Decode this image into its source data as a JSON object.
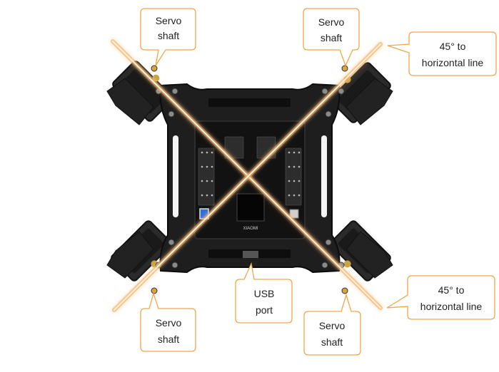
{
  "callouts": {
    "servo_top_left": {
      "line1": "Servo",
      "line2": "shaft"
    },
    "servo_top_right": {
      "line1": "Servo",
      "line2": "shaft"
    },
    "servo_bottom_left": {
      "line1": "Servo",
      "line2": "shaft"
    },
    "servo_bottom_right": {
      "line1": "Servo",
      "line2": "shaft"
    },
    "angle_top": {
      "line1": "45° to",
      "line2": "horizontal line"
    },
    "angle_bottom": {
      "line1": "45° to",
      "line2": "horizontal line"
    },
    "usb": {
      "line1": "USB",
      "line2": "port"
    }
  },
  "board": {
    "silkscreen": "XIAOMI"
  },
  "colors": {
    "callout_border": "#f0a64a",
    "glow_line": "#f7a33a",
    "frame": "#1e1e1e",
    "pcb": "#121212"
  }
}
